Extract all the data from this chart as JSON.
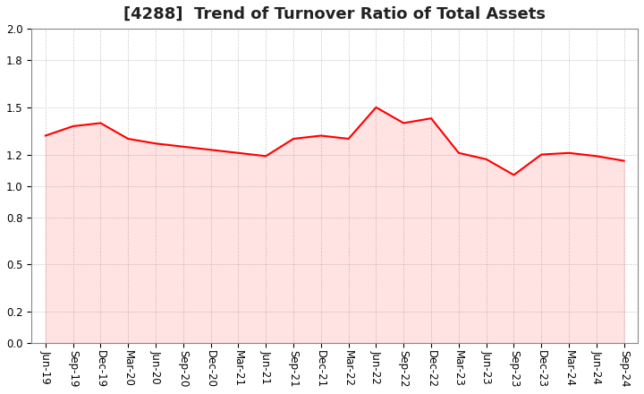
{
  "title": "[4288]  Trend of Turnover Ratio of Total Assets",
  "x_labels": [
    "Jun-19",
    "Sep-19",
    "Dec-19",
    "Mar-20",
    "Jun-20",
    "Sep-20",
    "Dec-20",
    "Mar-21",
    "Jun-21",
    "Sep-21",
    "Dec-21",
    "Mar-22",
    "Jun-22",
    "Sep-22",
    "Dec-22",
    "Mar-23",
    "Jun-23",
    "Sep-23",
    "Dec-23",
    "Mar-24",
    "Jun-24",
    "Sep-24"
  ],
  "xy_data": {
    "Jun-19": 1.32,
    "Sep-19": 1.38,
    "Dec-19": 1.4,
    "Mar-20": 1.3,
    "Jun-20": 1.27,
    "Sep-20": 1.25,
    "Dec-20": 1.23,
    "Mar-21": 1.21,
    "Jun-21": 1.19,
    "Sep-21": 1.3,
    "Dec-21": 1.32,
    "Mar-22": 1.3,
    "Jun-22": 1.5,
    "Sep-22": 1.4,
    "Dec-22": 1.43,
    "Mar-23": 1.21,
    "Jun-23": 1.17,
    "Sep-23": 1.07,
    "Dec-23": 1.2,
    "Mar-24": 1.21,
    "Jun-24": 1.19,
    "Sep-24": 1.16
  },
  "line_color": "#FF0000",
  "line_width": 1.5,
  "fill_color": "#FF6666",
  "fill_alpha": 0.18,
  "ylim": [
    0.0,
    2.0
  ],
  "yticks": [
    0.0,
    0.2,
    0.5,
    0.8,
    1.0,
    1.2,
    1.5,
    1.8,
    2.0
  ],
  "grid_color": "#bbbbbb",
  "background_color": "#ffffff",
  "title_fontsize": 13,
  "tick_fontsize": 8.5
}
